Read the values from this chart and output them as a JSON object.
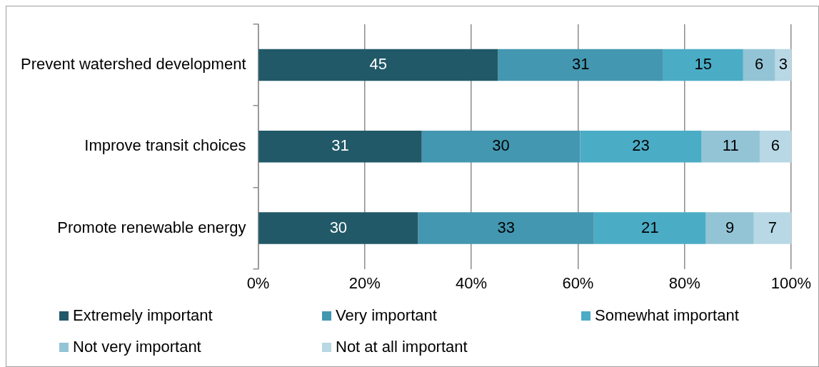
{
  "chart_data": {
    "type": "bar",
    "orientation": "horizontal",
    "stacked": true,
    "categories": [
      "Prevent watershed development",
      "Improve transit choices",
      "Promote renewable energy"
    ],
    "series": [
      {
        "name": "Extremely important",
        "color": "#215968",
        "values": [
          45,
          30.7,
          30
        ],
        "value_labels": [
          "45",
          "31",
          "30"
        ]
      },
      {
        "name": "Very important",
        "color": "#4397b0",
        "values": [
          31,
          29.7,
          33
        ],
        "value_labels": [
          "31",
          "30",
          "33"
        ]
      },
      {
        "name": "Somewhat important",
        "color": "#4bacc6",
        "values": [
          15,
          22.8,
          21
        ],
        "value_labels": [
          "15",
          "23",
          "21"
        ]
      },
      {
        "name": "Not very important",
        "color": "#93c4d6",
        "values": [
          6,
          10.9,
          9
        ],
        "value_labels": [
          "6",
          "11",
          "9"
        ]
      },
      {
        "name": "Not at all important",
        "color": "#b7d8e4",
        "values": [
          3,
          5.9,
          7
        ],
        "value_labels": [
          "3",
          "6",
          "7"
        ]
      }
    ],
    "xlim": [
      0,
      100
    ],
    "xticks": [
      {
        "value": 0,
        "label": "0%"
      },
      {
        "value": 20,
        "label": "20%"
      },
      {
        "value": 40,
        "label": "40%"
      },
      {
        "value": 60,
        "label": "60%"
      },
      {
        "value": 80,
        "label": "80%"
      },
      {
        "value": 100,
        "label": "100%"
      }
    ],
    "grid": "x",
    "legend": "bottom"
  }
}
